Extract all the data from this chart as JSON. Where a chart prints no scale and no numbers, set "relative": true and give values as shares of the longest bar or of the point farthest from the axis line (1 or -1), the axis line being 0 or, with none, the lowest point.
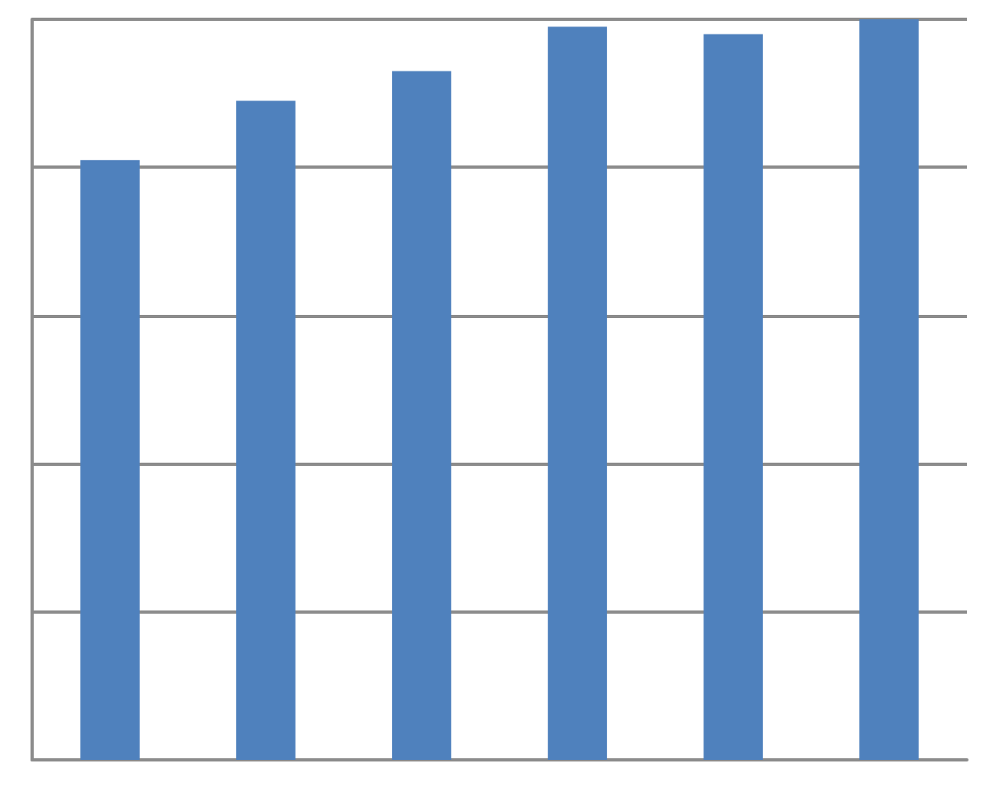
{
  "chart_data": {
    "type": "bar",
    "relative": true,
    "categories": [
      null,
      null,
      null,
      null,
      null,
      null
    ],
    "values": [
      0.81,
      0.89,
      0.93,
      0.99,
      0.98,
      1
    ],
    "color": "#4f81bd",
    "grid": "y"
  }
}
